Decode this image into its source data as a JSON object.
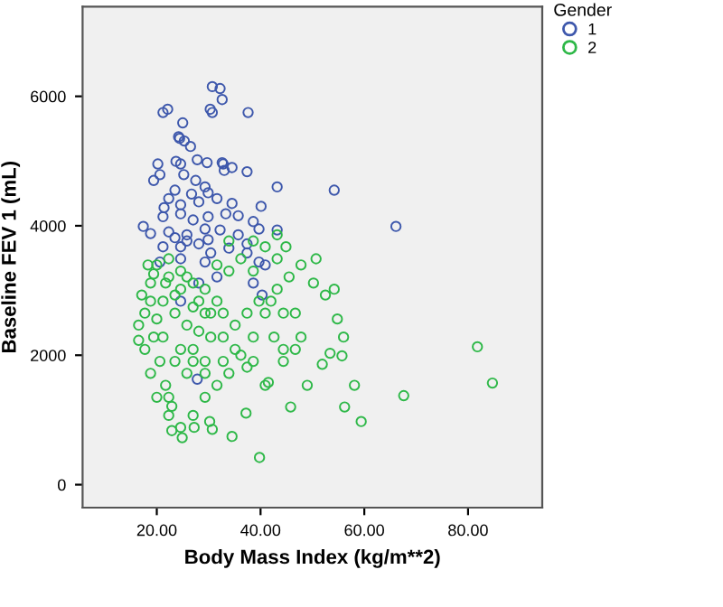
{
  "chart_data": {
    "type": "scatter",
    "xlabel": "Body Mass Index (kg/m**2)",
    "ylabel": "Baseline FEV 1 (mL)",
    "legend_title": "Gender",
    "legend": "top right",
    "marker": "circle",
    "grid": false,
    "xlim": [
      5.7,
      94.3
    ],
    "ylim": [
      -355,
      7385
    ],
    "xticks": [
      {
        "value": 20,
        "label": "20.00"
      },
      {
        "value": 40,
        "label": "40.00"
      },
      {
        "value": 60,
        "label": "60.00"
      },
      {
        "value": 80,
        "label": "80.00"
      }
    ],
    "yticks": [
      0,
      2000,
      4000,
      6000
    ],
    "series": [
      {
        "name": "1",
        "color": "#3e58ac",
        "x": [
          30.7,
          32.2,
          32.6,
          30.3,
          30.7,
          37.6,
          21.2,
          22.1,
          25.0,
          24.2,
          24.4,
          26.5,
          25.3,
          27.8,
          29.7,
          32.8,
          34.5,
          33.0,
          37.4,
          32.6,
          23.7,
          24.6,
          20.2,
          19.4,
          20.6,
          25.2,
          27.5,
          29.3,
          43.2,
          54.2,
          29.9,
          26.7,
          23.5,
          22.3,
          21.4,
          24.6,
          28.1,
          31.6,
          34.5,
          40.1,
          21.2,
          24.6,
          27.0,
          29.9,
          33.3,
          35.7,
          38.6,
          66.1,
          17.4,
          18.8,
          22.3,
          25.8,
          29.3,
          32.2,
          35.7,
          39.7,
          43.2,
          21.2,
          24.6,
          28.1,
          30.4,
          33.9,
          37.4,
          24.6,
          29.3,
          20.6,
          39.7,
          25.8,
          23.5,
          29.9,
          27.8,
          24.6,
          28.1,
          31.6,
          40.3,
          38.6,
          37.4,
          40.9
        ],
        "values": [
          6150,
          6120,
          5950,
          5800,
          5750,
          5750,
          5750,
          5800,
          5590,
          5375,
          5350,
          5225,
          5310,
          5020,
          4975,
          4955,
          4900,
          4855,
          4835,
          4975,
          4995,
          4955,
          4955,
          4700,
          4790,
          4790,
          4700,
          4600,
          4600,
          4550,
          4510,
          4490,
          4550,
          4420,
          4280,
          4325,
          4370,
          4420,
          4345,
          4300,
          4140,
          4185,
          4090,
          4140,
          4185,
          4155,
          4065,
          3990,
          3990,
          3880,
          3905,
          3860,
          3950,
          3935,
          3860,
          3950,
          3935,
          3675,
          3675,
          3720,
          3580,
          3655,
          3580,
          3490,
          3440,
          3440,
          3440,
          3765,
          3815,
          3785,
          1630,
          2835,
          3115,
          3210,
          2930,
          3115,
          3720,
          3395
        ]
      },
      {
        "name": "2",
        "color": "#2eb848",
        "x": [
          16.5,
          17.7,
          18.8,
          20.0,
          22.3,
          24.6,
          27.0,
          29.3,
          31.6,
          33.9,
          36.2,
          38.6,
          40.9,
          43.2,
          44.9,
          47.8,
          50.7,
          45.5,
          43.2,
          40.9,
          38.6,
          36.2,
          33.9,
          31.6,
          29.3,
          27.0,
          24.6,
          22.9,
          21.7,
          20.6,
          19.4,
          18.8,
          17.7,
          22.3,
          24.9,
          22.9,
          27.2,
          30.2,
          30.7,
          34.5,
          37.2,
          39.8,
          40.9,
          41.5,
          44.4,
          45.8,
          49.0,
          51.9,
          53.4,
          56.0,
          58.1,
          59.4,
          56.2,
          55.7,
          81.8,
          84.7,
          67.6,
          54.8,
          47.8,
          46.7,
          44.4,
          42.6,
          38.6,
          37.4,
          32.8,
          29.3,
          25.8,
          23.5,
          21.2,
          18.8,
          21.2,
          23.5,
          25.8,
          28.1,
          30.4,
          32.8,
          35.1,
          37.4,
          39.7,
          42.0,
          44.4,
          46.7,
          50.2,
          52.5,
          54.2,
          38.6,
          43.2,
          33.9,
          22.3,
          24.6,
          27.0,
          29.3,
          31.6,
          20.0,
          18.3,
          24.6,
          27.0,
          20.0,
          22.3,
          16.5,
          17.1,
          19.4,
          21.7,
          23.5,
          25.8,
          28.1,
          30.4,
          32.8,
          35.1,
          27.0,
          29.3
        ],
        "values": [
          2230,
          2650,
          3115,
          3395,
          3490,
          3300,
          3115,
          3020,
          3395,
          3300,
          3490,
          3300,
          3675,
          3490,
          3675,
          3395,
          3490,
          3210,
          3020,
          2650,
          2280,
          2000,
          1720,
          1535,
          1350,
          1070,
          885,
          1210,
          1535,
          1905,
          2280,
          1720,
          2090,
          1070,
          725,
          835,
          885,
          975,
          855,
          745,
          1105,
          420,
          1535,
          1580,
          1905,
          1200,
          1535,
          1860,
          2030,
          2280,
          1535,
          975,
          1200,
          1990,
          2130,
          1570,
          1375,
          2560,
          2280,
          2090,
          2090,
          2280,
          1905,
          1815,
          1905,
          1905,
          1720,
          1905,
          2280,
          2835,
          2835,
          2650,
          2465,
          2370,
          2280,
          2650,
          2465,
          2650,
          2835,
          2835,
          2650,
          2650,
          3115,
          2930,
          3020,
          3765,
          3860,
          3765,
          3210,
          3020,
          2745,
          2650,
          2835,
          2560,
          3395,
          2090,
          2090,
          1350,
          1350,
          2465,
          2930,
          3255,
          3115,
          2930,
          3210,
          2835,
          2650,
          2280,
          2090,
          1905,
          1720
        ]
      }
    ]
  }
}
